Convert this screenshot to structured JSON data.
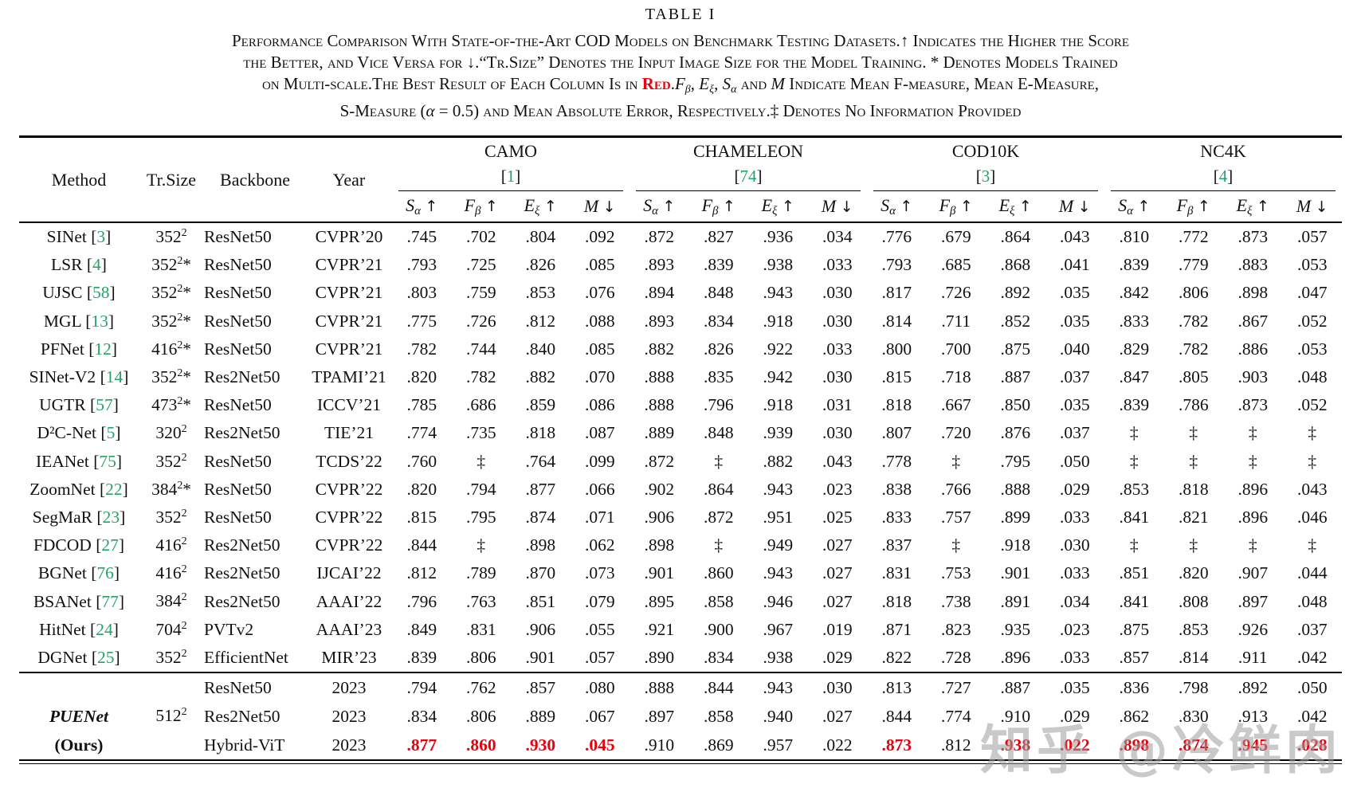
{
  "page": {
    "title": "TABLE I"
  },
  "colors": {
    "citation_green": "#26a269",
    "best_red": "#e8000d",
    "watermark_gray": "#9e9e9e",
    "rule_black": "#000000"
  },
  "caption": {
    "parts": [
      {
        "style": "normal",
        "text": "Performance Comparison With State-of-the-Art COD Models on Benchmark Testing Datasets.↑ Indicates the Higher the Score"
      },
      {
        "style": "br",
        "text": ""
      },
      {
        "style": "normal",
        "text": "the Better, and Vice Versa for ↓.“Tr.Size” Denotes the Input Image Size for the Model Training. * Denotes Models Trained"
      },
      {
        "style": "br",
        "text": ""
      },
      {
        "style": "normal",
        "text": "on Multi-scale.The Best Result of Each Column Is in "
      },
      {
        "style": "red",
        "text": "Red"
      },
      {
        "style": "normal",
        "text": "."
      },
      {
        "style": "mathvar",
        "text": "F"
      },
      {
        "style": "mathsub",
        "text": "β"
      },
      {
        "style": "normal",
        "text": ", "
      },
      {
        "style": "mathvar",
        "text": "E"
      },
      {
        "style": "mathsub",
        "text": "ξ"
      },
      {
        "style": "normal",
        "text": ", "
      },
      {
        "style": "mathvar",
        "text": "S"
      },
      {
        "style": "mathsub",
        "text": "α"
      },
      {
        "style": "normal",
        "text": " and "
      },
      {
        "style": "mathvar",
        "text": "M"
      },
      {
        "style": "normal",
        "text": " Indicate Mean F-measure, Mean E-Measure,"
      },
      {
        "style": "br",
        "text": ""
      },
      {
        "style": "normal",
        "text": "S-Measure ("
      },
      {
        "style": "mathvar",
        "text": "α"
      },
      {
        "style": "normal",
        "text": " = 0.5) and Mean Absolute Error, Respectively.‡ Denotes No Information Provided"
      }
    ]
  },
  "watermark": {
    "text": "知乎 @冷鲜肉"
  },
  "table": {
    "col_headers": [
      "Method",
      "Tr.Size",
      "Backbone",
      "Year"
    ],
    "datasets": [
      {
        "name": "CAMO",
        "cite": "1"
      },
      {
        "name": "CHAMELEON",
        "cite": "74"
      },
      {
        "name": "COD10K",
        "cite": "3"
      },
      {
        "name": "NC4K",
        "cite": "4"
      }
    ],
    "metrics": [
      {
        "sym": "S",
        "sub": "α",
        "arrow": "↑"
      },
      {
        "sym": "F",
        "sub": "β",
        "arrow": "↑"
      },
      {
        "sym": "E",
        "sub": "ξ",
        "arrow": "↑"
      },
      {
        "sym": "M",
        "sub": "",
        "arrow": "↓"
      }
    ],
    "rows": [
      {
        "method": "SINet",
        "cite": "3",
        "trsize": "352",
        "star": "",
        "backbone": "ResNet50",
        "year": "CVPR’20",
        "values": [
          ".745",
          ".702",
          ".804",
          ".092",
          ".872",
          ".827",
          ".936",
          ".034",
          ".776",
          ".679",
          ".864",
          ".043",
          ".810",
          ".772",
          ".873",
          ".057"
        ],
        "red": []
      },
      {
        "method": "LSR",
        "cite": "4",
        "trsize": "352",
        "star": "*",
        "backbone": "ResNet50",
        "year": "CVPR’21",
        "values": [
          ".793",
          ".725",
          ".826",
          ".085",
          ".893",
          ".839",
          ".938",
          ".033",
          ".793",
          ".685",
          ".868",
          ".041",
          ".839",
          ".779",
          ".883",
          ".053"
        ],
        "red": []
      },
      {
        "method": "UJSC",
        "cite": "58",
        "trsize": "352",
        "star": "*",
        "backbone": "ResNet50",
        "year": "CVPR’21",
        "values": [
          ".803",
          ".759",
          ".853",
          ".076",
          ".894",
          ".848",
          ".943",
          ".030",
          ".817",
          ".726",
          ".892",
          ".035",
          ".842",
          ".806",
          ".898",
          ".047"
        ],
        "red": []
      },
      {
        "method": "MGL",
        "cite": "13",
        "trsize": "352",
        "star": "*",
        "backbone": "ResNet50",
        "year": "CVPR’21",
        "values": [
          ".775",
          ".726",
          ".812",
          ".088",
          ".893",
          ".834",
          ".918",
          ".030",
          ".814",
          ".711",
          ".852",
          ".035",
          ".833",
          ".782",
          ".867",
          ".052"
        ],
        "red": []
      },
      {
        "method": "PFNet",
        "cite": "12",
        "trsize": "416",
        "star": "*",
        "backbone": "ResNet50",
        "year": "CVPR’21",
        "values": [
          ".782",
          ".744",
          ".840",
          ".085",
          ".882",
          ".826",
          ".922",
          ".033",
          ".800",
          ".700",
          ".875",
          ".040",
          ".829",
          ".782",
          ".886",
          ".053"
        ],
        "red": []
      },
      {
        "method": "SINet-V2",
        "cite": "14",
        "trsize": "352",
        "star": "*",
        "backbone": "Res2Net50",
        "year": "TPAMI’21",
        "values": [
          ".820",
          ".782",
          ".882",
          ".070",
          ".888",
          ".835",
          ".942",
          ".030",
          ".815",
          ".718",
          ".887",
          ".037",
          ".847",
          ".805",
          ".903",
          ".048"
        ],
        "red": []
      },
      {
        "method": "UGTR",
        "cite": "57",
        "trsize": "473",
        "star": "*",
        "backbone": "ResNet50",
        "year": "ICCV’21",
        "values": [
          ".785",
          ".686",
          ".859",
          ".086",
          ".888",
          ".796",
          ".918",
          ".031",
          ".818",
          ".667",
          ".850",
          ".035",
          ".839",
          ".786",
          ".873",
          ".052"
        ],
        "red": []
      },
      {
        "method": "D²C-Net",
        "cite": "5",
        "trsize": "320",
        "star": "",
        "backbone": "Res2Net50",
        "year": "TIE’21",
        "values": [
          ".774",
          ".735",
          ".818",
          ".087",
          ".889",
          ".848",
          ".939",
          ".030",
          ".807",
          ".720",
          ".876",
          ".037",
          "‡",
          "‡",
          "‡",
          "‡"
        ],
        "red": []
      },
      {
        "method": "IEANet",
        "cite": "75",
        "trsize": "352",
        "star": "",
        "backbone": "ResNet50",
        "year": "TCDS’22",
        "values": [
          ".760",
          "‡",
          ".764",
          ".099",
          ".872",
          "‡",
          ".882",
          ".043",
          ".778",
          "‡",
          ".795",
          ".050",
          "‡",
          "‡",
          "‡",
          "‡"
        ],
        "red": []
      },
      {
        "method": "ZoomNet",
        "cite": "22",
        "trsize": "384",
        "star": "*",
        "backbone": "ResNet50",
        "year": "CVPR’22",
        "values": [
          ".820",
          ".794",
          ".877",
          ".066",
          ".902",
          ".864",
          ".943",
          ".023",
          ".838",
          ".766",
          ".888",
          ".029",
          ".853",
          ".818",
          ".896",
          ".043"
        ],
        "red": []
      },
      {
        "method": "SegMaR",
        "cite": "23",
        "trsize": "352",
        "star": "",
        "backbone": "ResNet50",
        "year": "CVPR’22",
        "values": [
          ".815",
          ".795",
          ".874",
          ".071",
          ".906",
          ".872",
          ".951",
          ".025",
          ".833",
          ".757",
          ".899",
          ".033",
          ".841",
          ".821",
          ".896",
          ".046"
        ],
        "red": []
      },
      {
        "method": "FDCOD",
        "cite": "27",
        "trsize": "416",
        "star": "",
        "backbone": "Res2Net50",
        "year": "CVPR’22",
        "values": [
          ".844",
          "‡",
          ".898",
          ".062",
          ".898",
          "‡",
          ".949",
          ".027",
          ".837",
          "‡",
          ".918",
          ".030",
          "‡",
          "‡",
          "‡",
          "‡"
        ],
        "red": []
      },
      {
        "method": "BGNet",
        "cite": "76",
        "trsize": "416",
        "star": "",
        "backbone": "Res2Net50",
        "year": "IJCAI’22",
        "values": [
          ".812",
          ".789",
          ".870",
          ".073",
          ".901",
          ".860",
          ".943",
          ".027",
          ".831",
          ".753",
          ".901",
          ".033",
          ".851",
          ".820",
          ".907",
          ".044"
        ],
        "red": []
      },
      {
        "method": "BSANet",
        "cite": "77",
        "trsize": "384",
        "star": "",
        "backbone": "Res2Net50",
        "year": "AAAI’22",
        "values": [
          ".796",
          ".763",
          ".851",
          ".079",
          ".895",
          ".858",
          ".946",
          ".027",
          ".818",
          ".738",
          ".891",
          ".034",
          ".841",
          ".808",
          ".897",
          ".048"
        ],
        "red": []
      },
      {
        "method": "HitNet",
        "cite": "24",
        "trsize": "704",
        "star": "",
        "backbone": "PVTv2",
        "year": "AAAI’23",
        "values": [
          ".849",
          ".831",
          ".906",
          ".055",
          ".921",
          ".900",
          ".967",
          ".019",
          ".871",
          ".823",
          ".935",
          ".023",
          ".875",
          ".853",
          ".926",
          ".037"
        ],
        "red": []
      },
      {
        "method": "DGNet",
        "cite": "25",
        "trsize": "352",
        "star": "",
        "backbone": "EfficientNet",
        "year": "MIR’23",
        "values": [
          ".839",
          ".806",
          ".901",
          ".057",
          ".890",
          ".834",
          ".938",
          ".029",
          ".822",
          ".728",
          ".896",
          ".033",
          ".857",
          ".814",
          ".911",
          ".042"
        ],
        "red": []
      }
    ],
    "ours_label": {
      "name": "PUENet",
      "ours": "(Ours)",
      "trsize": "512"
    },
    "ours_rows": [
      {
        "backbone": "ResNet50",
        "year": "2023",
        "values": [
          ".794",
          ".762",
          ".857",
          ".080",
          ".888",
          ".844",
          ".943",
          ".030",
          ".813",
          ".727",
          ".887",
          ".035",
          ".836",
          ".798",
          ".892",
          ".050"
        ],
        "red": []
      },
      {
        "backbone": "Res2Net50",
        "year": "2023",
        "values": [
          ".834",
          ".806",
          ".889",
          ".067",
          ".897",
          ".858",
          ".940",
          ".027",
          ".844",
          ".774",
          ".910",
          ".029",
          ".862",
          ".830",
          ".913",
          ".042"
        ],
        "red": []
      },
      {
        "backbone": "Hybrid-ViT",
        "year": "2023",
        "values": [
          ".877",
          ".860",
          ".930",
          ".045",
          ".910",
          ".869",
          ".957",
          ".022",
          ".873",
          ".812",
          ".938",
          ".022",
          ".898",
          ".874",
          ".945",
          ".028"
        ],
        "red": [
          0,
          1,
          2,
          3,
          8,
          10,
          11,
          12,
          13,
          14,
          15
        ]
      }
    ]
  }
}
